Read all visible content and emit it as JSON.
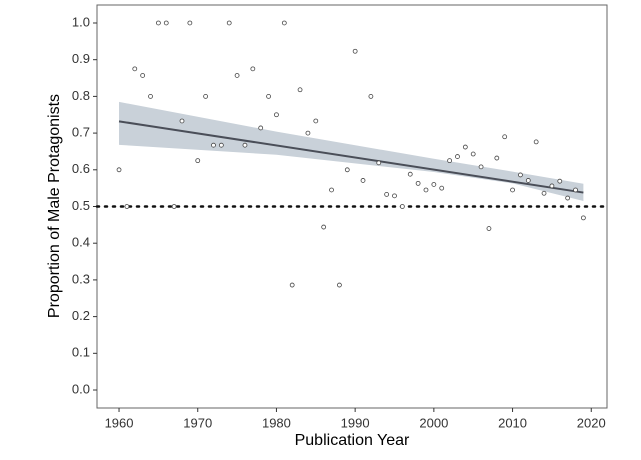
{
  "chart_data": {
    "type": "scatter",
    "x_label": "Publication Year",
    "y_label": "Proportion of Male Protagonists",
    "x": [
      1960,
      1961,
      1962,
      1963,
      1964,
      1965,
      1966,
      1967,
      1968,
      1969,
      1970,
      1971,
      1972,
      1973,
      1974,
      1975,
      1976,
      1977,
      1978,
      1979,
      1980,
      1981,
      1982,
      1983,
      1984,
      1985,
      1986,
      1987,
      1988,
      1989,
      1990,
      1991,
      1992,
      1993,
      1994,
      1995,
      1996,
      1997,
      1998,
      1999,
      2000,
      2001,
      2002,
      2003,
      2004,
      2005,
      2006,
      2007,
      2008,
      2009,
      2010,
      2011,
      2012,
      2013,
      2014,
      2015,
      2016,
      2017,
      2018,
      2019
    ],
    "values": [
      0.6,
      0.5,
      0.875,
      0.857,
      0.8,
      1.0,
      1.0,
      0.5,
      0.733,
      1.0,
      0.625,
      0.8,
      0.667,
      0.667,
      1.0,
      0.857,
      0.667,
      0.875,
      0.714,
      0.8,
      0.75,
      1.0,
      0.286,
      0.818,
      0.7,
      0.733,
      0.444,
      0.545,
      0.286,
      0.6,
      0.923,
      0.571,
      0.8,
      0.619,
      0.533,
      0.529,
      0.5,
      0.588,
      0.563,
      0.545,
      0.56,
      0.55,
      0.625,
      0.636,
      0.662,
      0.643,
      0.608,
      0.44,
      0.632,
      0.69,
      0.545,
      0.586,
      0.571,
      0.676,
      0.536,
      0.556,
      0.569,
      0.523,
      0.545,
      0.469
    ],
    "color": "#444444",
    "fit": {
      "x": [
        1960,
        2019
      ],
      "values": [
        0.732,
        0.538
      ],
      "color": "#4a4e58"
    },
    "band": {
      "x": [
        1960,
        1980,
        2000,
        2010,
        2019
      ],
      "lower": [
        0.668,
        0.641,
        0.594,
        0.563,
        0.515
      ],
      "upper": [
        0.785,
        0.704,
        0.63,
        0.595,
        0.562
      ],
      "color": "#c9d1d9"
    },
    "hline": 0.5,
    "xlim": [
      1957.2,
      2022
    ],
    "ylim": [
      -0.049,
      1.049
    ],
    "xticks": [
      1960,
      1970,
      1980,
      1990,
      2000,
      2010,
      2020
    ],
    "yticks": [
      {
        "value": 0,
        "label": "0.0"
      },
      0.1,
      0.2,
      0.3,
      0.4,
      0.5,
      0.6,
      0.7,
      0.8,
      0.9,
      {
        "value": 1,
        "label": "1.0"
      }
    ],
    "grid": false
  }
}
